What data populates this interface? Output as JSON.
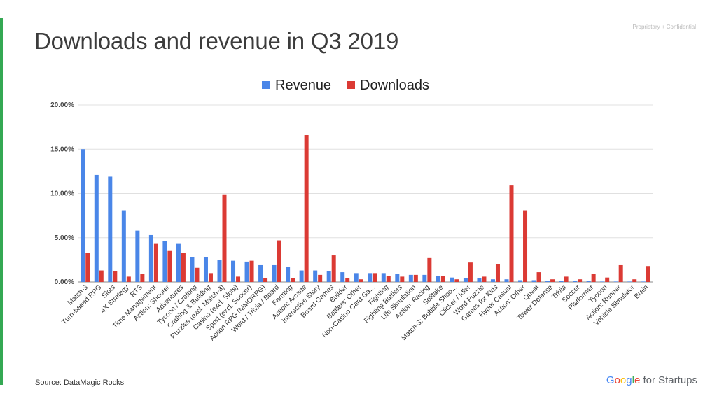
{
  "slide": {
    "title": "Downloads and revenue in Q3 2019",
    "confidential": "Proprietary + Confidential",
    "source": "Source:  DataMagic Rocks",
    "logo_text": "Google for Startups"
  },
  "colors": {
    "revenue": "#4a86e8",
    "downloads": "#db3a34",
    "accent": "#34a853",
    "grid": "#e0e0e0"
  },
  "chart_data": {
    "type": "bar",
    "title": "",
    "xlabel": "",
    "ylabel": "",
    "ylim": [
      0,
      20
    ],
    "y_ticks": [
      "0.00%",
      "5.00%",
      "10.00%",
      "15.00%",
      "20.00%"
    ],
    "legend_position": "top-center",
    "grid": true,
    "categories": [
      "Match-3",
      "Turn-based RPG",
      "Slots",
      "4X Strategy",
      "RTS",
      "Time Management",
      "Action: Shooter",
      "Adventures",
      "Tycoon / Crafting",
      "Crafting & Building",
      "Puzzles (excl. Match-3)",
      "Casino (excl. Slots)",
      "Sport (excl. Soccer)",
      "Action RPG (MMORPG)",
      "Word / Trivia / Board",
      "Farming",
      "Action: Arcade",
      "Interactive Story",
      "Board Games",
      "Builder",
      "Battlers: Other",
      "Non-Casino Card Ga...",
      "Fighting",
      "Fighting Battlers",
      "Life Simulation",
      "Action: Racing",
      "Solitaire",
      "Match-3: Bubble Shoo...",
      "Clicker / Idler",
      "Word Puzzle",
      "Games for Kids",
      "Hyper Casual",
      "Action: Other",
      "Quest",
      "Tower Defense",
      "Trivia",
      "Soccer",
      "Platformer",
      "Tycoon",
      "Action: Runner",
      "Vehicle Simulator",
      "Brain"
    ],
    "series": [
      {
        "name": "Revenue",
        "values": [
          15.0,
          12.1,
          11.9,
          8.1,
          5.8,
          5.3,
          4.6,
          4.3,
          2.8,
          2.8,
          2.5,
          2.4,
          2.3,
          1.9,
          1.9,
          1.7,
          1.3,
          1.3,
          1.2,
          1.1,
          1.0,
          1.0,
          1.0,
          0.9,
          0.8,
          0.8,
          0.7,
          0.5,
          0.45,
          0.45,
          0.3,
          0.3,
          0.2,
          0.2,
          0.15,
          0.15,
          0.1,
          0.1,
          0.05,
          0.05,
          0.05,
          0.05
        ]
      },
      {
        "name": "Downloads",
        "values": [
          3.3,
          1.3,
          1.2,
          0.6,
          0.9,
          4.3,
          3.5,
          3.3,
          1.6,
          1.0,
          9.9,
          0.6,
          2.4,
          0.4,
          4.7,
          0.4,
          16.6,
          0.8,
          3.0,
          0.4,
          0.3,
          1.0,
          0.7,
          0.6,
          0.8,
          2.7,
          0.7,
          0.3,
          2.2,
          0.6,
          2.0,
          10.9,
          8.1,
          1.1,
          0.3,
          0.6,
          0.3,
          0.9,
          0.5,
          1.9,
          0.3,
          1.8
        ]
      }
    ]
  }
}
